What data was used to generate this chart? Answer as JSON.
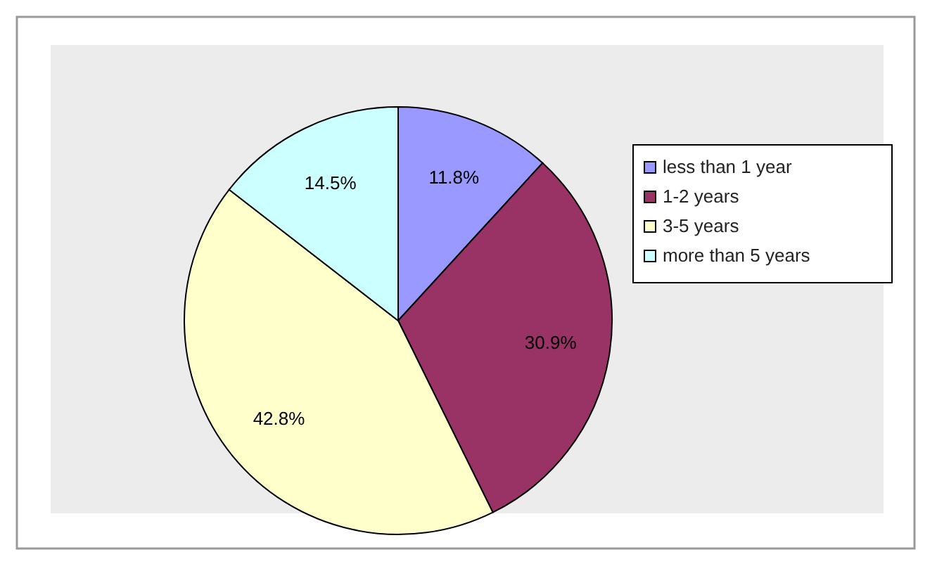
{
  "chart_data": {
    "type": "pie",
    "categories": [
      "less than  1 year",
      "1-2 years",
      "3-5 years",
      "more than 5 years"
    ],
    "values": [
      11.8,
      30.9,
      42.8,
      14.5
    ],
    "colors": [
      "#9999ff",
      "#993366",
      "#ffffcc",
      "#ccffff"
    ],
    "value_labels": [
      "11.8%",
      "30.9%",
      "42.8%",
      "14.5%"
    ],
    "legend": "right"
  }
}
